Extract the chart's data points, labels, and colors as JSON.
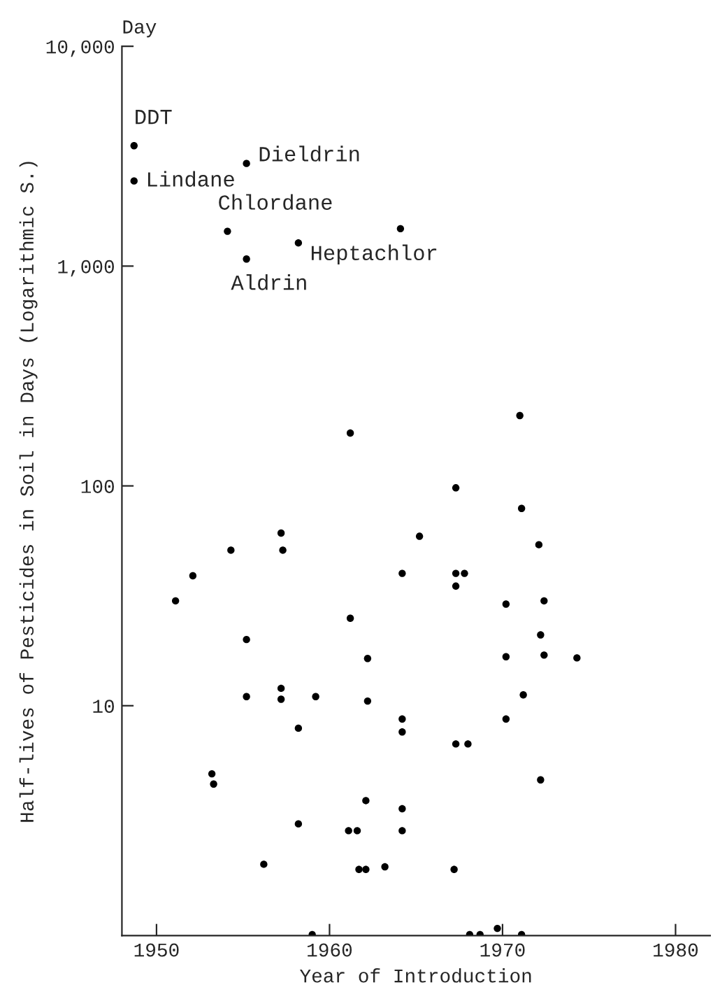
{
  "chart_data": {
    "type": "scatter",
    "xlabel": "Year of Introduction",
    "ylabel": "Half-lives of Pesticides in Soil in Days (Logarithmic S.)",
    "log": "y",
    "grid": false,
    "legend": false,
    "marker": "circle",
    "xlim": [
      1948,
      1982
    ],
    "xticks": [
      1950,
      1960,
      1970,
      1980
    ],
    "ylim": [
      0.9,
      10000
    ],
    "yticks": [
      {
        "value": 10,
        "label": "10"
      },
      {
        "value": 100,
        "label": "100"
      },
      {
        "value": 1000,
        "label": "1,000"
      },
      {
        "value": 10000,
        "label": "10,000"
      }
    ],
    "series": [
      {
        "color": "#000000",
        "x": [
          1948.7,
          1948.7,
          1955.2,
          1954.1,
          1958.2,
          1955.2,
          1964.1,
          1961.2,
          1957.2,
          1954.3,
          1957.3,
          1952.1,
          1964.2,
          1951.1,
          1961.2,
          1971.0,
          1967.3,
          1971.1,
          1965.2,
          1972.1,
          1967.3,
          1967.8,
          1967.3,
          1970.2,
          1972.4,
          1972.2,
          1970.2,
          1972.4,
          1974.3,
          1971.2,
          1970.2,
          1967.3,
          1968.0,
          1972.2,
          1967.2,
          1968.1,
          1968.7,
          1969.7,
          1971.1,
          1955.2,
          1962.2,
          1955.2,
          1957.2,
          1957.2,
          1959.2,
          1962.2,
          1958.2,
          1964.2,
          1964.2,
          1953.2,
          1953.3,
          1962.1,
          1964.2,
          1958.2,
          1961.1,
          1961.6,
          1964.2,
          1956.2,
          1961.7,
          1962.1,
          1963.2,
          1959.0
        ],
        "values": [
          3530,
          2440,
          2930,
          1440,
          1275,
          1077,
          1480,
          174,
          61,
          51,
          51,
          39,
          40,
          30,
          25,
          209,
          98,
          79,
          59,
          54,
          40,
          40,
          35,
          29,
          30,
          21,
          16.7,
          17,
          16.5,
          11.2,
          8.7,
          6.7,
          6.7,
          4.6,
          1.8,
          0.91,
          0.91,
          0.97,
          0.91,
          20,
          16.4,
          11,
          12,
          10.7,
          11,
          10.5,
          7.9,
          8.7,
          7.6,
          4.9,
          4.4,
          3.7,
          3.4,
          2.9,
          2.7,
          2.7,
          2.7,
          1.9,
          1.8,
          1.8,
          1.85,
          0.91
        ]
      }
    ],
    "annotations": [
      "Day",
      {
        "text": "DDT",
        "x": 1948.7,
        "y": 3530
      },
      {
        "text": "Lindane",
        "x": 1948.7,
        "y": 2440
      },
      {
        "text": "Dieldrin",
        "x": 1955.2,
        "y": 2930
      },
      {
        "text": "Chlordane",
        "x": 1954.1,
        "y": 1440
      },
      {
        "text": "Heptachlor",
        "x": 1958.2,
        "y": 1275
      },
      {
        "text": "Aldrin",
        "x": 1955.2,
        "y": 1077
      }
    ]
  }
}
